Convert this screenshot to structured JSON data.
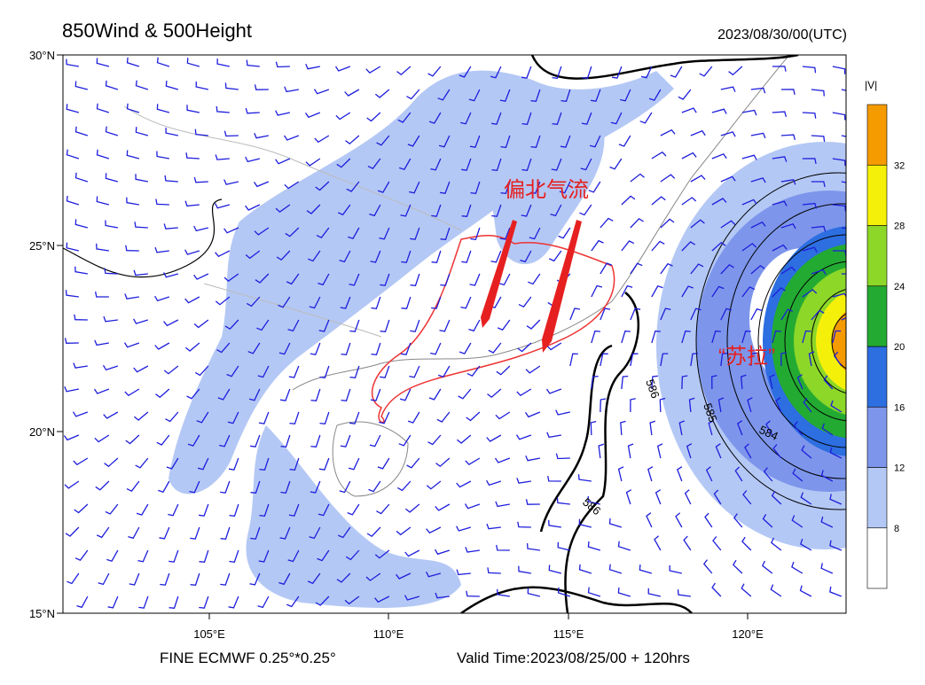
{
  "header": {
    "title": "850Wind & 500Height",
    "datetime": "2023/08/30/00(UTC)"
  },
  "axes": {
    "lat_labels": [
      "30°N",
      "25°N",
      "20°N",
      "15°N"
    ],
    "lon_labels": [
      "105°E",
      "110°E",
      "115°E",
      "120°E"
    ]
  },
  "colorbar": {
    "label": "|V|",
    "levels": [
      8,
      12,
      16,
      20,
      24,
      28,
      32
    ],
    "colors": [
      "#ffffff",
      "#b4c8f5",
      "#7d96eb",
      "#2d6ee1",
      "#23aa32",
      "#8cd728",
      "#f5f00a",
      "#f59b00"
    ]
  },
  "annotations": {
    "flow": "偏北气流",
    "typhoon": "“苏拉”"
  },
  "contour_labels": [
    "586",
    "585",
    "584",
    "586"
  ],
  "footer": {
    "model": "FINE ECMWF 0.25°*0.25°",
    "valid": "Valid Time:2023/08/25/00 + 120hrs"
  }
}
